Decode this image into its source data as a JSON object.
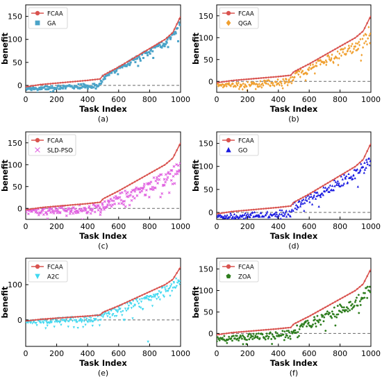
{
  "figure": {
    "panels": [
      {
        "id": "a",
        "caption": "(a)",
        "xlabel": "Task Index",
        "ylabel": "benefit"
      },
      {
        "id": "b",
        "caption": "(b)",
        "xlabel": "Task Index",
        "ylabel": "benefit"
      },
      {
        "id": "c",
        "caption": "(c)",
        "xlabel": "Task Index",
        "ylabel": "benefit"
      },
      {
        "id": "d",
        "caption": "(d)",
        "xlabel": "Task Index",
        "ylabel": "benefit"
      },
      {
        "id": "e",
        "caption": "(e)",
        "xlabel": "Task Index",
        "ylabel": "benefit"
      },
      {
        "id": "f",
        "caption": "(f)",
        "xlabel": "Task Index",
        "ylabel": "benefit"
      }
    ]
  },
  "chart_data": [
    {
      "type": "scatter",
      "panel": "(a)",
      "xlabel": "Task Index",
      "ylabel": "benefit",
      "xlim": [
        0,
        1000
      ],
      "ylim": [
        -15,
        175
      ],
      "xticks": [
        0,
        200,
        400,
        600,
        800,
        1000
      ],
      "yticks": [
        0,
        50,
        100,
        150
      ],
      "reference_line": 0,
      "legend_position": "top-left",
      "series": [
        {
          "name": "FCAA",
          "kind": "line",
          "marker": "circle",
          "color": "#d9534f",
          "x": [
            0,
            100,
            200,
            300,
            400,
            480,
            500,
            600,
            700,
            800,
            900,
            950,
            1000
          ],
          "y": [
            -3,
            2,
            5,
            8,
            11,
            14,
            22,
            40,
            60,
            80,
            100,
            115,
            150
          ]
        },
        {
          "name": "GA",
          "kind": "scatter",
          "marker": "square",
          "color": "#4aa3c8",
          "profile_x": [
            0,
            100,
            200,
            300,
            400,
            480,
            500,
            600,
            700,
            800,
            900,
            950,
            1000
          ],
          "profile_y": [
            -8,
            -6,
            -4,
            -3,
            -1,
            2,
            18,
            35,
            55,
            74,
            92,
            108,
            138
          ],
          "spread": 5,
          "outlier_share": 0.05,
          "outlier_drop": 20,
          "count": 220
        }
      ]
    },
    {
      "type": "scatter",
      "panel": "(b)",
      "xlabel": "Task Index",
      "ylabel": "benefit",
      "xlim": [
        0,
        1000
      ],
      "ylim": [
        -25,
        175
      ],
      "xticks": [
        0,
        200,
        400,
        600,
        800,
        1000
      ],
      "yticks": [
        0,
        50,
        100,
        150
      ],
      "reference_line": 0,
      "legend_position": "top-left",
      "series": [
        {
          "name": "FCAA",
          "kind": "line",
          "marker": "circle",
          "color": "#d9534f",
          "x": [
            0,
            100,
            200,
            300,
            400,
            480,
            500,
            600,
            700,
            800,
            900,
            950,
            1000
          ],
          "y": [
            -3,
            2,
            5,
            8,
            11,
            14,
            22,
            40,
            60,
            80,
            100,
            115,
            150
          ]
        },
        {
          "name": "QGA",
          "kind": "scatter",
          "marker": "diamond",
          "color": "#f0a030",
          "profile_x": [
            0,
            100,
            200,
            300,
            400,
            480,
            500,
            600,
            700,
            800,
            900,
            950,
            1000
          ],
          "profile_y": [
            -10,
            -8,
            -7,
            -5,
            -3,
            0,
            12,
            28,
            45,
            62,
            80,
            90,
            120
          ],
          "spread": 8,
          "outlier_share": 0.15,
          "outlier_drop": 25,
          "count": 230
        }
      ]
    },
    {
      "type": "scatter",
      "panel": "(c)",
      "xlabel": "Task Index",
      "ylabel": "benefit",
      "xlim": [
        0,
        1000
      ],
      "ylim": [
        -25,
        175
      ],
      "xticks": [
        0,
        200,
        400,
        600,
        800,
        1000
      ],
      "yticks": [
        0,
        50,
        100,
        150
      ],
      "reference_line": 0,
      "legend_position": "top-left",
      "series": [
        {
          "name": "FCAA",
          "kind": "line",
          "marker": "circle",
          "color": "#d9534f",
          "x": [
            0,
            100,
            200,
            300,
            400,
            480,
            500,
            600,
            700,
            800,
            900,
            950,
            1000
          ],
          "y": [
            -3,
            2,
            5,
            8,
            11,
            14,
            22,
            40,
            60,
            80,
            100,
            115,
            150
          ]
        },
        {
          "name": "SLD-PSO",
          "kind": "scatter",
          "marker": "x",
          "color": "#e060e0",
          "profile_x": [
            0,
            100,
            200,
            300,
            400,
            480,
            500,
            600,
            700,
            800,
            900,
            950,
            1000
          ],
          "profile_y": [
            -5,
            -4,
            -3,
            -2,
            -1,
            0,
            10,
            22,
            38,
            52,
            68,
            80,
            100
          ],
          "spread": 10,
          "outlier_share": 0.2,
          "outlier_drop": 22,
          "count": 230
        }
      ]
    },
    {
      "type": "scatter",
      "panel": "(d)",
      "xlabel": "Task Index",
      "ylabel": "benefit",
      "xlim": [
        0,
        1000
      ],
      "ylim": [
        -15,
        175
      ],
      "xticks": [
        0,
        200,
        400,
        600,
        800,
        1000
      ],
      "yticks": [
        0,
        50,
        100,
        150
      ],
      "reference_line": 0,
      "legend_position": "top-left",
      "series": [
        {
          "name": "FCAA",
          "kind": "line",
          "marker": "circle",
          "color": "#d9534f",
          "x": [
            0,
            100,
            200,
            300,
            400,
            480,
            500,
            600,
            700,
            800,
            900,
            950,
            1000
          ],
          "y": [
            -3,
            2,
            5,
            8,
            11,
            14,
            22,
            40,
            60,
            80,
            100,
            115,
            150
          ]
        },
        {
          "name": "GO",
          "kind": "scatter",
          "marker": "triangle-up",
          "color": "#1a1ae0",
          "profile_x": [
            0,
            100,
            200,
            300,
            400,
            480,
            500,
            600,
            700,
            800,
            900,
            950,
            1000
          ],
          "profile_y": [
            -8,
            -7,
            -6,
            -5,
            -3,
            0,
            15,
            30,
            48,
            66,
            85,
            98,
            118
          ],
          "spread": 8,
          "outlier_share": 0.1,
          "outlier_drop": 20,
          "count": 230
        }
      ]
    },
    {
      "type": "scatter",
      "panel": "(e)",
      "xlabel": "Task Index",
      "ylabel": "benefit",
      "xlim": [
        0,
        1000
      ],
      "ylim": [
        -75,
        175
      ],
      "xticks": [
        0,
        200,
        400,
        600,
        800,
        1000
      ],
      "yticks": [
        0,
        100
      ],
      "reference_line": 0,
      "legend_position": "top-left",
      "series": [
        {
          "name": "FCAA",
          "kind": "line",
          "marker": "circle",
          "color": "#d9534f",
          "x": [
            0,
            100,
            200,
            300,
            400,
            480,
            500,
            600,
            700,
            800,
            900,
            950,
            1000
          ],
          "y": [
            -3,
            2,
            5,
            8,
            11,
            14,
            22,
            40,
            60,
            80,
            100,
            115,
            150
          ]
        },
        {
          "name": "A2C",
          "kind": "scatter",
          "marker": "triangle-down",
          "color": "#40d8f0",
          "profile_x": [
            0,
            100,
            200,
            300,
            400,
            480,
            500,
            600,
            700,
            800,
            900,
            950,
            1000
          ],
          "profile_y": [
            -5,
            -3,
            -2,
            0,
            2,
            5,
            16,
            30,
            48,
            64,
            82,
            95,
            118
          ],
          "spread": 9,
          "outlier_share": 0.15,
          "outlier_drop": 30,
          "count": 230,
          "extra_points": [
            {
              "x": 790,
              "y": -62
            }
          ]
        }
      ]
    },
    {
      "type": "scatter",
      "panel": "(f)",
      "xlabel": "Task Index",
      "ylabel": "benefit",
      "xlim": [
        0,
        1000
      ],
      "ylim": [
        -30,
        175
      ],
      "xticks": [
        0,
        200,
        400,
        600,
        800,
        1000
      ],
      "yticks": [
        0,
        50,
        100,
        150
      ],
      "reference_line": 0,
      "legend_position": "top-left",
      "series": [
        {
          "name": "FCAA",
          "kind": "line",
          "marker": "circle",
          "color": "#d9534f",
          "x": [
            0,
            100,
            200,
            300,
            400,
            480,
            500,
            600,
            700,
            800,
            900,
            950,
            1000
          ],
          "y": [
            -3,
            2,
            5,
            8,
            11,
            14,
            22,
            40,
            60,
            80,
            100,
            115,
            150
          ]
        },
        {
          "name": "ZOA",
          "kind": "scatter",
          "marker": "pentagon",
          "color": "#2e7d1e",
          "profile_x": [
            0,
            100,
            200,
            300,
            400,
            480,
            500,
            600,
            700,
            800,
            900,
            950,
            1000
          ],
          "profile_y": [
            -12,
            -10,
            -8,
            -6,
            -4,
            -1,
            8,
            22,
            38,
            55,
            72,
            84,
            108
          ],
          "spread": 9,
          "outlier_share": 0.15,
          "outlier_drop": 22,
          "count": 230
        }
      ]
    }
  ]
}
